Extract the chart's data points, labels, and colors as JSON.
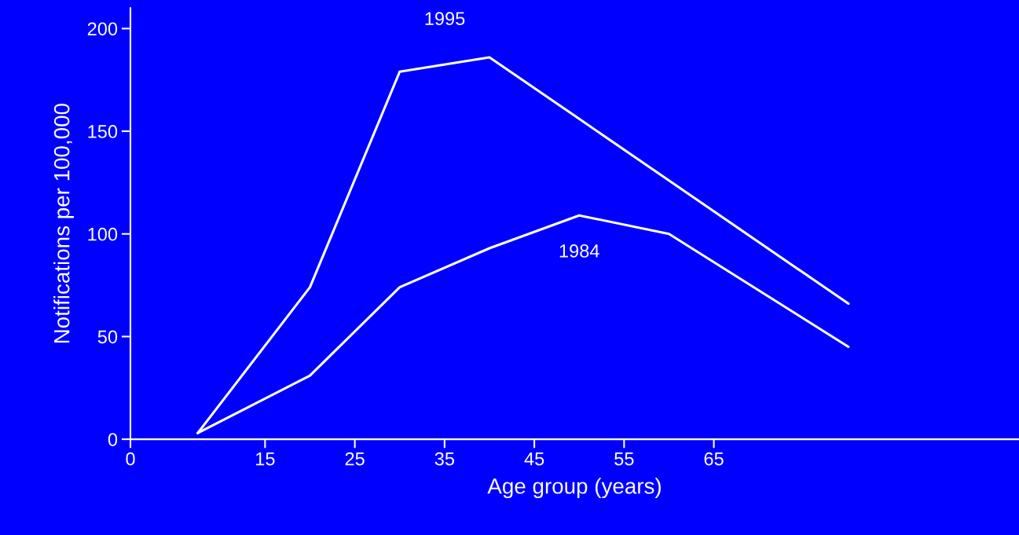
{
  "chart_data": {
    "type": "line",
    "xlabel": "Age group (years)",
    "ylabel": "Notifications per 100,000",
    "x": [
      7.5,
      20,
      30,
      40,
      50,
      60,
      80
    ],
    "series": [
      {
        "name": "1995",
        "color": "#ffffff",
        "values": [
          3,
          74,
          179,
          186,
          156,
          126,
          66
        ]
      },
      {
        "name": "1984",
        "color": "#ffffff",
        "values": [
          3,
          31,
          74,
          93,
          109,
          100,
          45
        ]
      }
    ],
    "xlim": [
      0,
      99
    ],
    "xticks": [
      0,
      15,
      25,
      35,
      45,
      55,
      65
    ],
    "ylim": [
      0,
      210
    ],
    "yticks": [
      0,
      50,
      100,
      150,
      200
    ],
    "grid": false,
    "marker": "none",
    "line_style": "solid"
  }
}
